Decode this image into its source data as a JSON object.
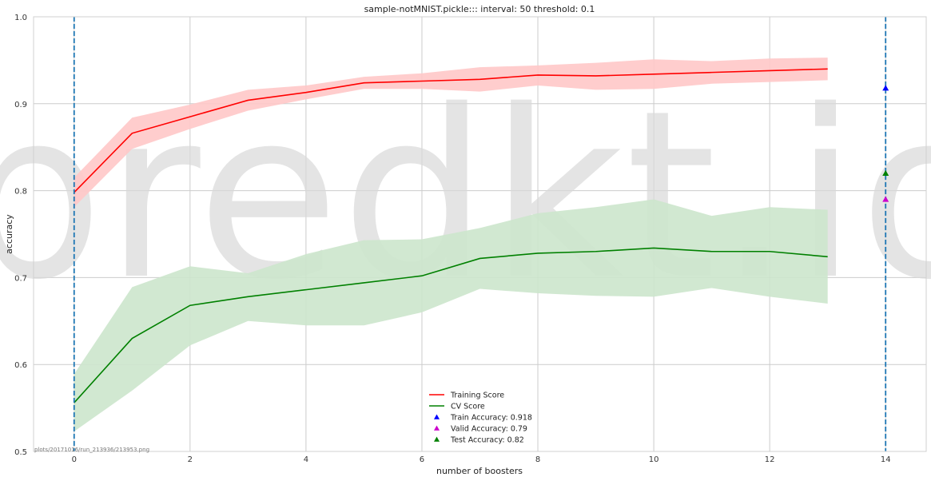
{
  "chart_data": {
    "type": "line",
    "title": "sample-notMNIST.pickle::: interval: 50 threshold: 0.1",
    "xlabel": "number of boosters",
    "ylabel": "accuracy",
    "xlim": [
      -0.7,
      14.7
    ],
    "ylim": [
      0.5,
      1.0
    ],
    "xticks": [
      0,
      2,
      4,
      6,
      8,
      10,
      12,
      14
    ],
    "xtick_labels": [
      "0",
      "2",
      "4",
      "6",
      "8",
      "10",
      "12",
      "14"
    ],
    "yticks": [
      0.5,
      0.6,
      0.7,
      0.8,
      0.9,
      1.0
    ],
    "ytick_labels": [
      "0.5",
      "0.6",
      "0.7",
      "0.8",
      "0.9",
      "1.0"
    ],
    "grid": true,
    "x": [
      0,
      1,
      2,
      3,
      4,
      5,
      6,
      7,
      8,
      9,
      10,
      11,
      12,
      13
    ],
    "series": [
      {
        "name": "Training Score",
        "color": "#ff0000",
        "band_color": "#ffc8c8",
        "values": [
          0.798,
          0.866,
          0.885,
          0.904,
          0.913,
          0.924,
          0.926,
          0.928,
          0.933,
          0.932,
          0.934,
          0.936,
          0.938,
          0.94
        ],
        "lower": [
          0.781,
          0.848,
          0.871,
          0.892,
          0.905,
          0.917,
          0.917,
          0.914,
          0.921,
          0.916,
          0.917,
          0.923,
          0.925,
          0.927
        ],
        "upper": [
          0.815,
          0.884,
          0.899,
          0.916,
          0.921,
          0.931,
          0.935,
          0.942,
          0.944,
          0.947,
          0.951,
          0.949,
          0.952,
          0.953
        ]
      },
      {
        "name": "CV Score",
        "color": "#008000",
        "band_color": "#cce6cc",
        "values": [
          0.556,
          0.63,
          0.668,
          0.678,
          0.686,
          0.694,
          0.702,
          0.722,
          0.728,
          0.73,
          0.734,
          0.73,
          0.73,
          0.724
        ],
        "lower": [
          0.523,
          0.57,
          0.622,
          0.65,
          0.645,
          0.645,
          0.66,
          0.687,
          0.682,
          0.679,
          0.678,
          0.688,
          0.678,
          0.67
        ],
        "upper": [
          0.589,
          0.689,
          0.713,
          0.705,
          0.727,
          0.743,
          0.744,
          0.757,
          0.774,
          0.781,
          0.79,
          0.771,
          0.781,
          0.778
        ]
      }
    ],
    "points": [
      {
        "name": "Train Accuracy: 0.918",
        "x": 14,
        "y": 0.918,
        "color": "#0000ff"
      },
      {
        "name": "Valid Accuracy: 0.79",
        "x": 14,
        "y": 0.79,
        "color": "#cc00cc"
      },
      {
        "name": "Test Accuracy: 0.82",
        "x": 14,
        "y": 0.82,
        "color": "#008000"
      }
    ],
    "vlines": [
      {
        "x": 0,
        "color": "#1f77b4"
      },
      {
        "x": 14,
        "color": "#1f77b4"
      }
    ],
    "legend_position": "bottom-center",
    "watermark": "predkt.io",
    "footer_note": "plots/20171016/run_213936/213953.png"
  }
}
